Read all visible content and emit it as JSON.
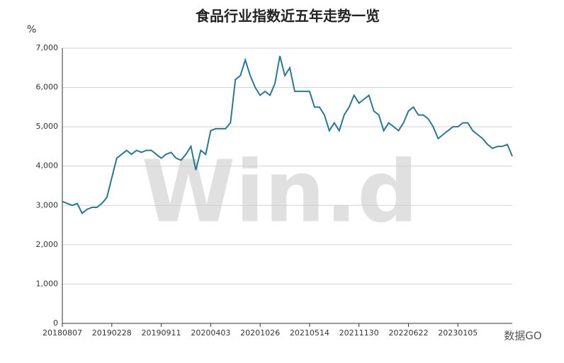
{
  "chart_data": {
    "type": "line",
    "title": "食品行业指数近五年走势一览",
    "y_unit": "%",
    "watermark": "Win.d",
    "logo_text": "数据GO",
    "categories": [
      "20180807",
      null,
      null,
      null,
      null,
      null,
      null,
      null,
      null,
      null,
      "20190228",
      null,
      null,
      null,
      null,
      null,
      null,
      null,
      null,
      null,
      "20190911",
      null,
      null,
      null,
      null,
      null,
      null,
      null,
      null,
      null,
      "20200403",
      null,
      null,
      null,
      null,
      null,
      null,
      null,
      null,
      null,
      "20201026",
      null,
      null,
      null,
      null,
      null,
      null,
      null,
      null,
      null,
      "20210514",
      null,
      null,
      null,
      null,
      null,
      null,
      null,
      null,
      null,
      "20211130",
      null,
      null,
      null,
      null,
      null,
      null,
      null,
      null,
      null,
      "20220622",
      null,
      null,
      null,
      null,
      null,
      null,
      null,
      null,
      null,
      "20230105",
      null,
      null,
      null,
      null,
      null,
      null,
      null,
      null,
      null,
      null,
      null
    ],
    "series": [
      {
        "name": "食品行业指数",
        "color": "#2b7792",
        "values": [
          3100,
          3050,
          3000,
          3050,
          2800,
          2900,
          2950,
          2950,
          3050,
          3200,
          3700,
          4200,
          4300,
          4400,
          4300,
          4400,
          4350,
          4400,
          4400,
          4300,
          4200,
          4300,
          4350,
          4200,
          4150,
          4300,
          4500,
          3900,
          4400,
          4300,
          4900,
          4950,
          4950,
          4950,
          5100,
          6200,
          6300,
          6700,
          6300,
          6000,
          5800,
          5900,
          5800,
          6100,
          6800,
          6300,
          6500,
          5900,
          5900,
          5900,
          5900,
          5500,
          5500,
          5300,
          4900,
          5100,
          4900,
          5300,
          5500,
          5800,
          5600,
          5700,
          5800,
          5400,
          5300,
          4900,
          5100,
          5000,
          4900,
          5100,
          5400,
          5500,
          5300,
          5300,
          5200,
          5000,
          4700,
          4800,
          4900,
          5000,
          5000,
          5100,
          5100,
          4900,
          4800,
          4700,
          4550,
          4450,
          4500,
          4500,
          4550,
          4250
        ]
      }
    ],
    "ylim": [
      0,
      7000
    ],
    "yticks": [
      0,
      {
        "value": 1000,
        "label": "1,000"
      },
      {
        "value": 2000,
        "label": "2,000"
      },
      {
        "value": 3000,
        "label": "3,000"
      },
      {
        "value": 4000,
        "label": "4,000"
      },
      {
        "value": 5000,
        "label": "5,000"
      },
      {
        "value": 6000,
        "label": "6,000"
      },
      {
        "value": 7000,
        "label": "7,000"
      }
    ],
    "grid": true
  }
}
